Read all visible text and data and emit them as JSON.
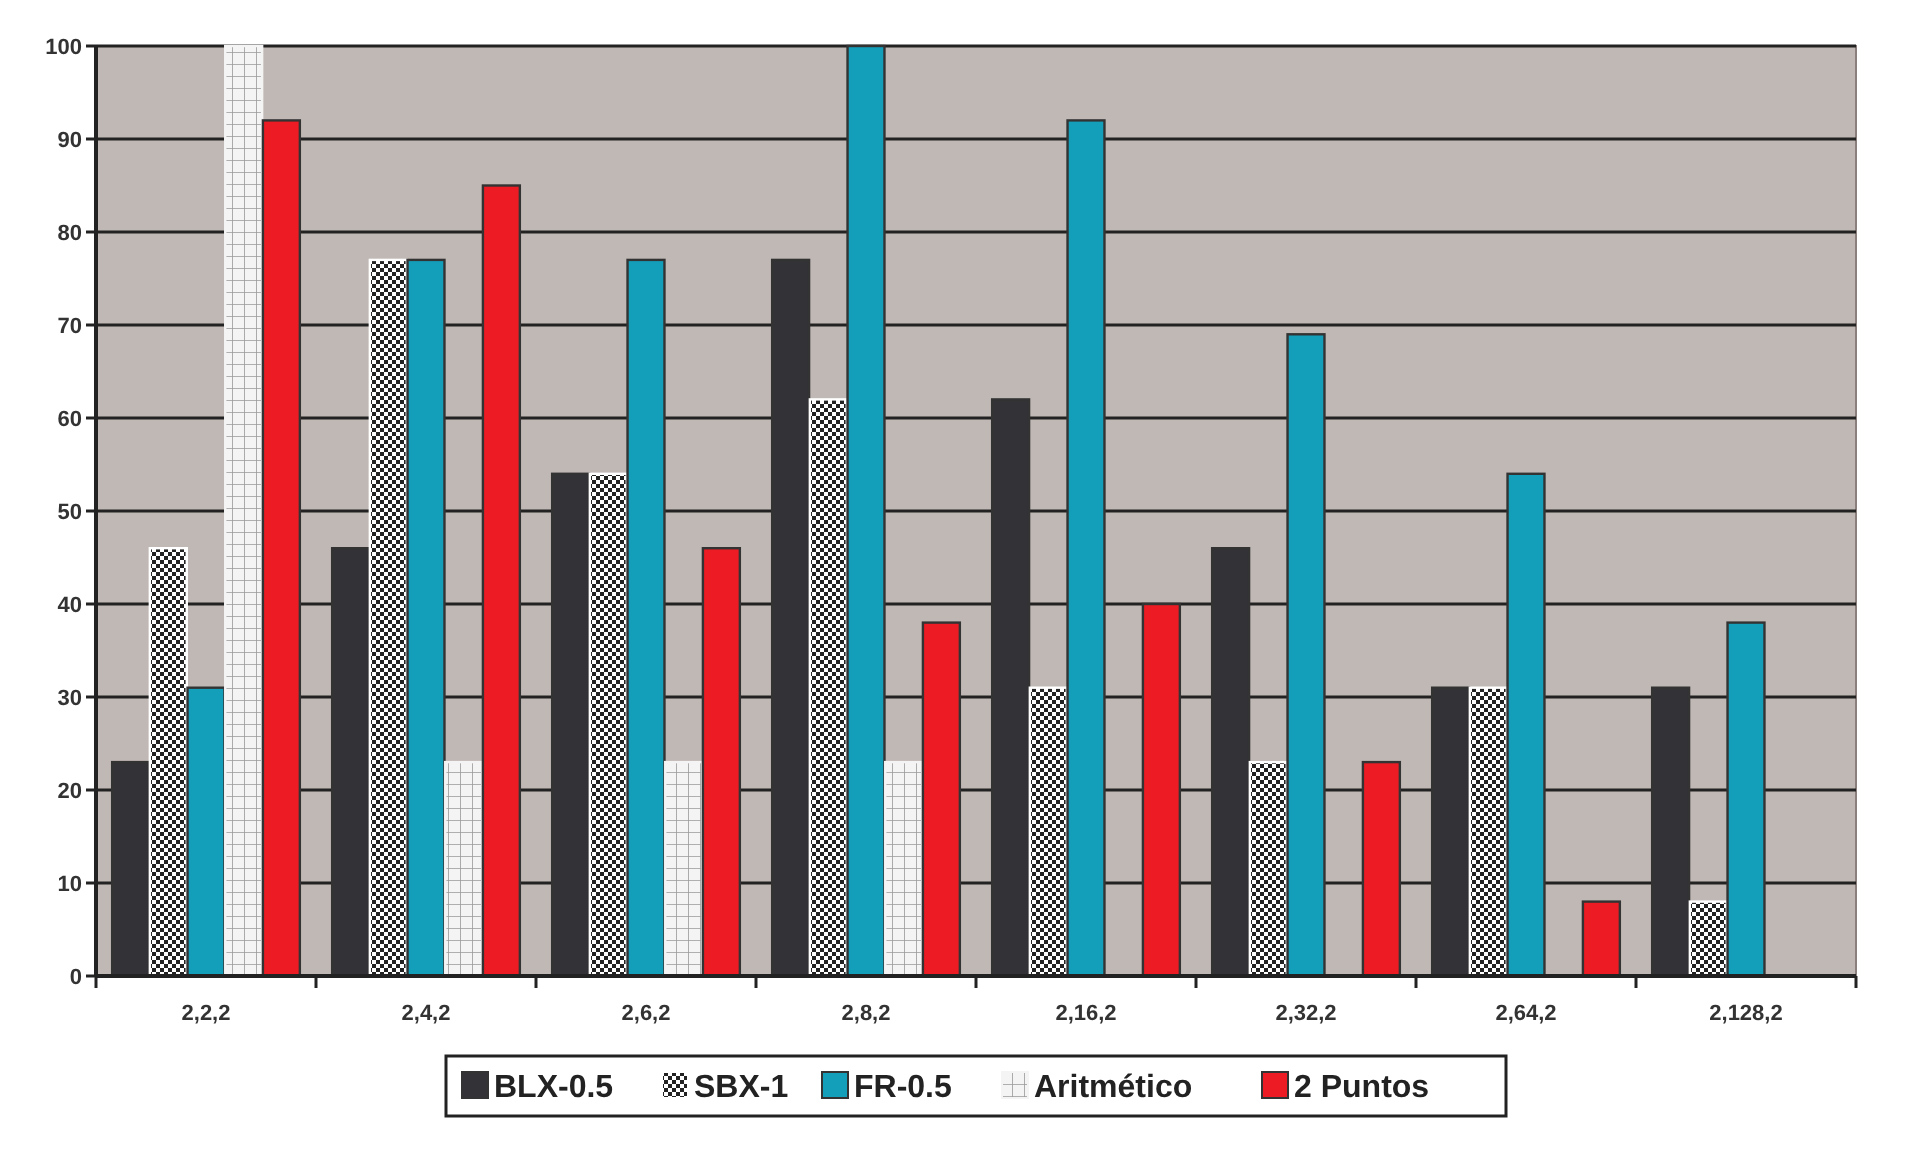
{
  "chart_data": {
    "type": "bar",
    "categories": [
      "2,2,2",
      "2,4,2",
      "2,6,2",
      "2,8,2",
      "2,16,2",
      "2,32,2",
      "2,64,2",
      "2,128,2"
    ],
    "series": [
      {
        "name": "BLX-0.5",
        "color": "#333236",
        "values": [
          23,
          46,
          54,
          77,
          62,
          46,
          31,
          31
        ]
      },
      {
        "name": "SBX-1",
        "color": "#ffffff",
        "values": [
          46,
          77,
          54,
          62,
          31,
          23,
          31,
          8
        ]
      },
      {
        "name": "FR-0.5",
        "color": "#139eba",
        "values": [
          31,
          77,
          77,
          100,
          92,
          69,
          54,
          38
        ]
      },
      {
        "name": "Aritmético",
        "color": "#f4f4f4",
        "values": [
          100,
          23,
          23,
          23,
          0,
          0,
          0,
          0
        ]
      },
      {
        "name": "2 Puntos",
        "color": "#ed1c24",
        "values": [
          92,
          85,
          46,
          38,
          40,
          23,
          8,
          0
        ]
      }
    ],
    "ylim": [
      0,
      100
    ],
    "yticks": [
      0,
      10,
      20,
      30,
      40,
      50,
      60,
      70,
      80,
      90,
      100
    ],
    "grid": "y",
    "legend": "bottom"
  }
}
